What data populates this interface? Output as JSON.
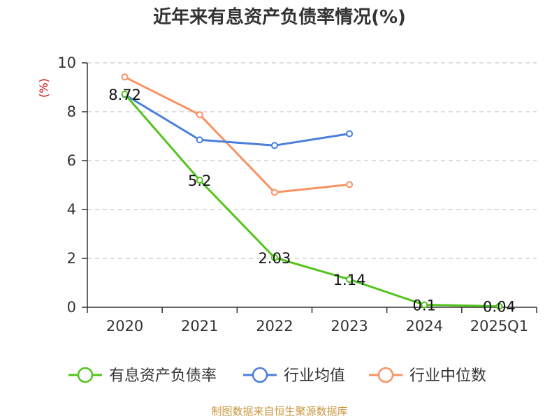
{
  "title": "近年来有息资产负债率情况(%)",
  "source": "制图数据来自恒生聚源数据库",
  "chart_data": {
    "type": "line",
    "title": "近年来有息资产负债率情况(%)",
    "ylabel": "(%)",
    "xlabel": "",
    "categories": [
      "2020",
      "2021",
      "2022",
      "2023",
      "2024",
      "2025Q1"
    ],
    "ylim": [
      0,
      10
    ],
    "yticks": [
      0,
      2,
      4,
      6,
      8,
      10
    ],
    "grid": true,
    "legend": "bottom",
    "series": [
      {
        "name": "有息资产负债率",
        "color": "#52c41a",
        "values": [
          8.72,
          5.2,
          2.03,
          1.14,
          0.1,
          0.04
        ],
        "labels": [
          "8.72",
          "5.2",
          "2.03",
          "1.14",
          "0.1",
          "0.04"
        ]
      },
      {
        "name": "行业均值",
        "color": "#4a7fdc",
        "values": [
          8.7,
          6.85,
          6.62,
          7.1,
          null,
          null
        ]
      },
      {
        "name": "行业中位数",
        "color": "#f89363",
        "values": [
          9.42,
          7.88,
          4.7,
          5.02,
          null,
          null
        ]
      }
    ]
  }
}
